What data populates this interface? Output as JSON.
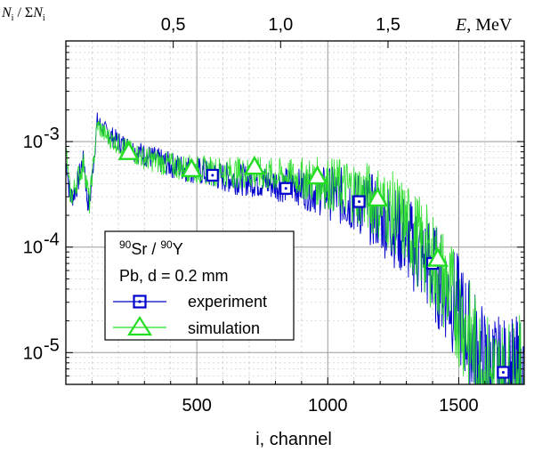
{
  "chart_data": {
    "type": "line",
    "y_scale": "log",
    "grid": true,
    "legend_position": "center-left",
    "x_axis": {
      "label": "i, channel",
      "range": [
        0,
        1750
      ],
      "ticks": [
        500,
        1000,
        1500
      ],
      "tick_labels": [
        "500",
        "1000",
        "1500"
      ]
    },
    "x_top_axis": {
      "label_var": "E",
      "label_unit": ", MeV",
      "ticks": [
        0.5,
        1.0,
        1.5
      ],
      "tick_labels": [
        "0,5",
        "1,0",
        "1,5"
      ],
      "channel_per_mev": 820
    },
    "y_axis": {
      "label_num": "N",
      "label_num_sub": "i",
      "label_sep": " / Σ",
      "label_den": "N",
      "label_den_sub": "i",
      "range": [
        5e-06,
        0.009
      ],
      "ticks": [
        1e-05,
        0.0001,
        0.001
      ],
      "tick_labels": [
        {
          "base": "10",
          "exp": "-5"
        },
        {
          "base": "10",
          "exp": "-4"
        },
        {
          "base": "10",
          "exp": "-3"
        }
      ]
    },
    "legend": {
      "line1_sup1": "90",
      "line1_el1": "Sr / ",
      "line1_sup2": "90",
      "line1_el2": "Y",
      "line2": "Pb, d = 0.2 mm",
      "entries": [
        {
          "label": "experiment",
          "color": "#0000cc",
          "marker": "square"
        },
        {
          "label": "simulation",
          "color": "#22dd22",
          "marker": "triangle"
        }
      ]
    },
    "series": [
      {
        "name": "experiment",
        "color": "#0000cc",
        "marker": "square",
        "points": [
          [
            0,
            0.0006
          ],
          [
            5,
            0.0006
          ],
          [
            10,
            0.0004
          ],
          [
            20,
            0.0003
          ],
          [
            30,
            0.00032
          ],
          [
            45,
            0.0004
          ],
          [
            60,
            0.0006
          ],
          [
            70,
            0.00065
          ],
          [
            80,
            0.0003
          ],
          [
            90,
            0.00025
          ],
          [
            120,
            0.00155
          ],
          [
            150,
            0.00125
          ],
          [
            200,
            0.001
          ],
          [
            250,
            0.00085
          ],
          [
            300,
            0.00075
          ],
          [
            400,
            0.0006
          ],
          [
            500,
            0.00053
          ],
          [
            600,
            0.00046
          ],
          [
            700,
            0.00043
          ],
          [
            800,
            0.0004
          ],
          [
            900,
            0.00037
          ],
          [
            1000,
            0.00033
          ],
          [
            1050,
            0.0003
          ],
          [
            1100,
            0.00027
          ],
          [
            1150,
            0.00024
          ],
          [
            1200,
            0.0002
          ],
          [
            1250,
            0.00016
          ],
          [
            1300,
            0.00012
          ],
          [
            1350,
            8.5e-05
          ],
          [
            1400,
            6e-05
          ],
          [
            1450,
            4e-05
          ],
          [
            1500,
            2.5e-05
          ],
          [
            1550,
            1.3e-05
          ],
          [
            1600,
            7e-06
          ],
          [
            1650,
            5.5e-06
          ],
          [
            1700,
            5e-06
          ]
        ],
        "markers": [
          [
            560,
            0.00048
          ],
          [
            840,
            0.00036
          ],
          [
            1120,
            0.00027
          ],
          [
            1400,
            7e-05
          ],
          [
            1670,
            6.5e-06
          ]
        ]
      },
      {
        "name": "simulation",
        "color": "#22dd22",
        "marker": "triangle",
        "points": [
          [
            0,
            0.0007
          ],
          [
            5,
            0.0007
          ],
          [
            10,
            0.0004
          ],
          [
            20,
            0.0003
          ],
          [
            30,
            0.00034
          ],
          [
            45,
            0.00045
          ],
          [
            60,
            0.00055
          ],
          [
            70,
            0.00062
          ],
          [
            80,
            0.0004
          ],
          [
            90,
            0.00026
          ],
          [
            120,
            0.00145
          ],
          [
            150,
            0.00115
          ],
          [
            200,
            0.00095
          ],
          [
            250,
            0.0008
          ],
          [
            300,
            0.0007
          ],
          [
            400,
            0.0006
          ],
          [
            500,
            0.00054
          ],
          [
            600,
            0.00052
          ],
          [
            700,
            0.0005
          ],
          [
            800,
            0.00048
          ],
          [
            900,
            0.00045
          ],
          [
            1000,
            0.0004
          ],
          [
            1050,
            0.00037
          ],
          [
            1100,
            0.00034
          ],
          [
            1150,
            0.0003
          ],
          [
            1200,
            0.00026
          ],
          [
            1250,
            0.00021
          ],
          [
            1300,
            0.00016
          ],
          [
            1350,
            0.00011
          ],
          [
            1400,
            7.5e-05
          ],
          [
            1450,
            4.5e-05
          ],
          [
            1500,
            2.5e-05
          ],
          [
            1550,
            1.2e-05
          ],
          [
            1600,
            6.5e-06
          ],
          [
            1650,
            5.2e-06
          ],
          [
            1700,
            5e-06
          ]
        ],
        "markers": [
          [
            240,
            0.0008
          ],
          [
            480,
            0.00055
          ],
          [
            720,
            0.00058
          ],
          [
            960,
            0.00047
          ],
          [
            1190,
            0.00029
          ],
          [
            1420,
            7.8e-05
          ]
        ]
      }
    ]
  }
}
